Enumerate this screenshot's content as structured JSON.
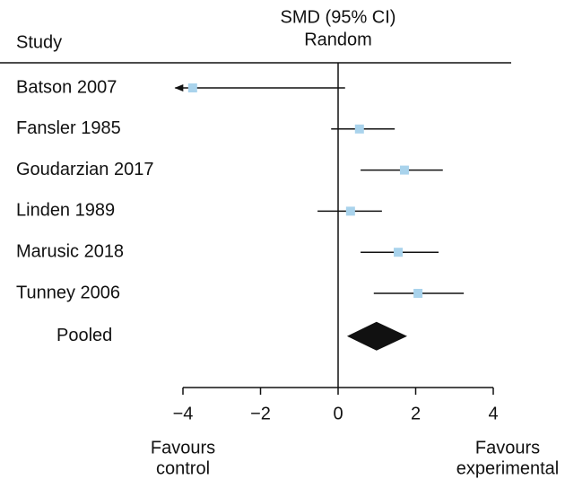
{
  "chart_data": {
    "type": "forest",
    "measure_label": "SMD (95% CI)",
    "model_label": "Random",
    "study_header": "Study",
    "studies": [
      {
        "name": "Batson 2007",
        "estimate": -3.75,
        "lower": -4.2,
        "upper": 0.18
      },
      {
        "name": "Fansler 1985",
        "estimate": 0.55,
        "lower": -0.18,
        "upper": 1.46
      },
      {
        "name": "Goudarzian 2017",
        "estimate": 1.71,
        "lower": 0.58,
        "upper": 2.7
      },
      {
        "name": "Linden 1989",
        "estimate": 0.32,
        "lower": -0.53,
        "upper": 1.13
      },
      {
        "name": "Marusic  2018",
        "estimate": 1.55,
        "lower": 0.58,
        "upper": 2.59
      },
      {
        "name": "Tunney 2006",
        "estimate": 2.06,
        "lower": 0.92,
        "upper": 3.24
      }
    ],
    "pooled": {
      "name": "Pooled",
      "estimate": 0.99,
      "lower": 0.23,
      "upper": 1.78
    },
    "marker_color": "#a9d3ec",
    "xlim": [
      -4,
      4
    ],
    "xticks": [
      {
        "value": -4,
        "label": "−4"
      },
      {
        "value": -2,
        "label": "−2"
      },
      0,
      2,
      4
    ],
    "left_label": [
      "Favours",
      "control"
    ],
    "right_label": [
      "Favours",
      "experimental"
    ]
  }
}
